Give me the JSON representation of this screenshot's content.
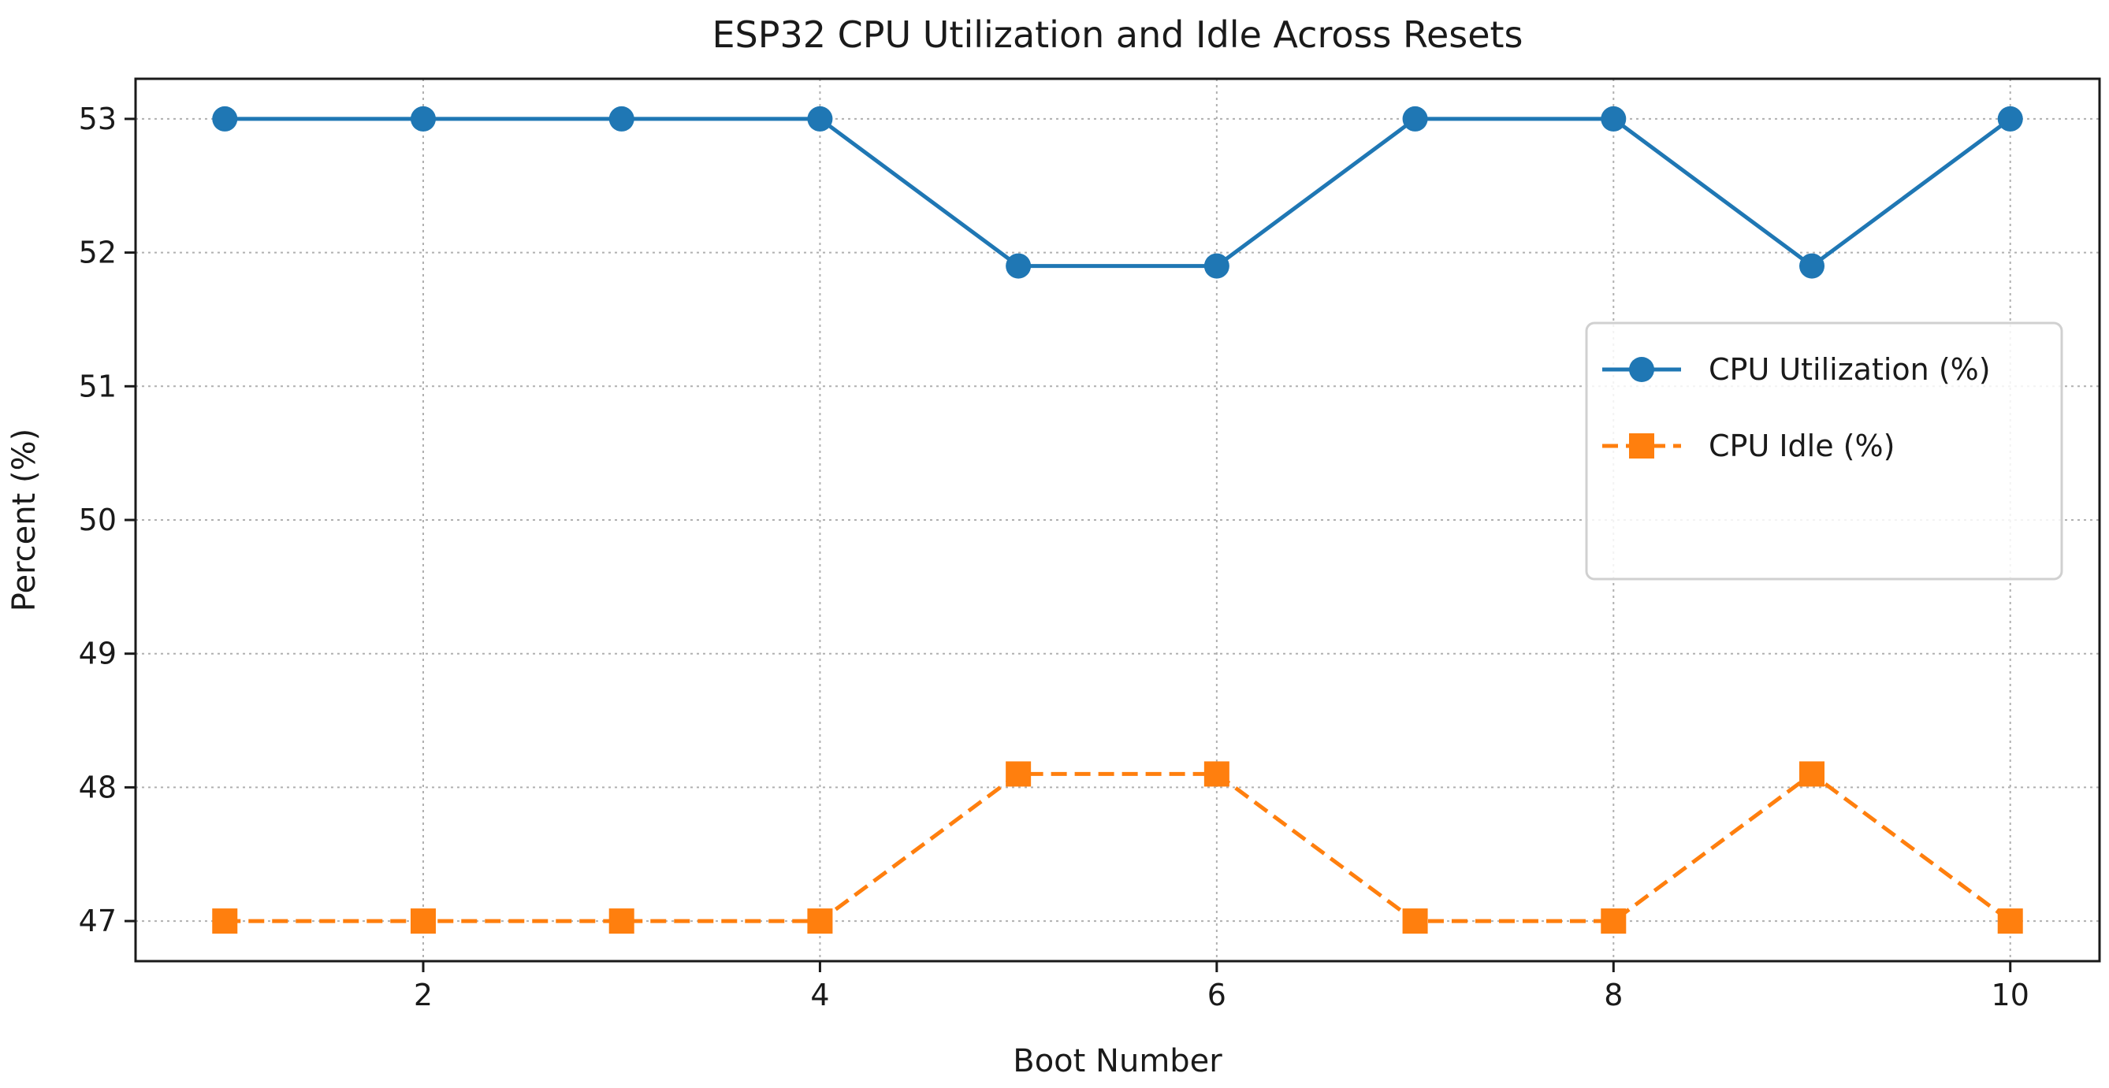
{
  "chart_data": {
    "type": "line",
    "title": "ESP32 CPU Utilization and Idle Across Resets",
    "xlabel": "Boot Number",
    "ylabel": "Percent (%)",
    "x": [
      1,
      2,
      3,
      4,
      5,
      6,
      7,
      8,
      9,
      10
    ],
    "xlim": [
      0.55,
      10.45
    ],
    "ylim": [
      46.7,
      53.3
    ],
    "xticks": [
      2,
      4,
      6,
      8,
      10
    ],
    "yticks": [
      47,
      48,
      49,
      50,
      51,
      52,
      53
    ],
    "grid": true,
    "legend_position": "center-right",
    "series": [
      {
        "name": "CPU Utilization (%)",
        "values": [
          53,
          53,
          53,
          53,
          51.9,
          51.9,
          53,
          53,
          51.9,
          53
        ],
        "color": "#1f77b4",
        "line_style": "solid",
        "marker": "circle"
      },
      {
        "name": "CPU Idle (%)",
        "values": [
          47,
          47,
          47,
          47,
          48.1,
          48.1,
          47,
          47,
          48.1,
          47
        ],
        "color": "#ff7f0e",
        "line_style": "dashed",
        "marker": "square"
      }
    ]
  }
}
